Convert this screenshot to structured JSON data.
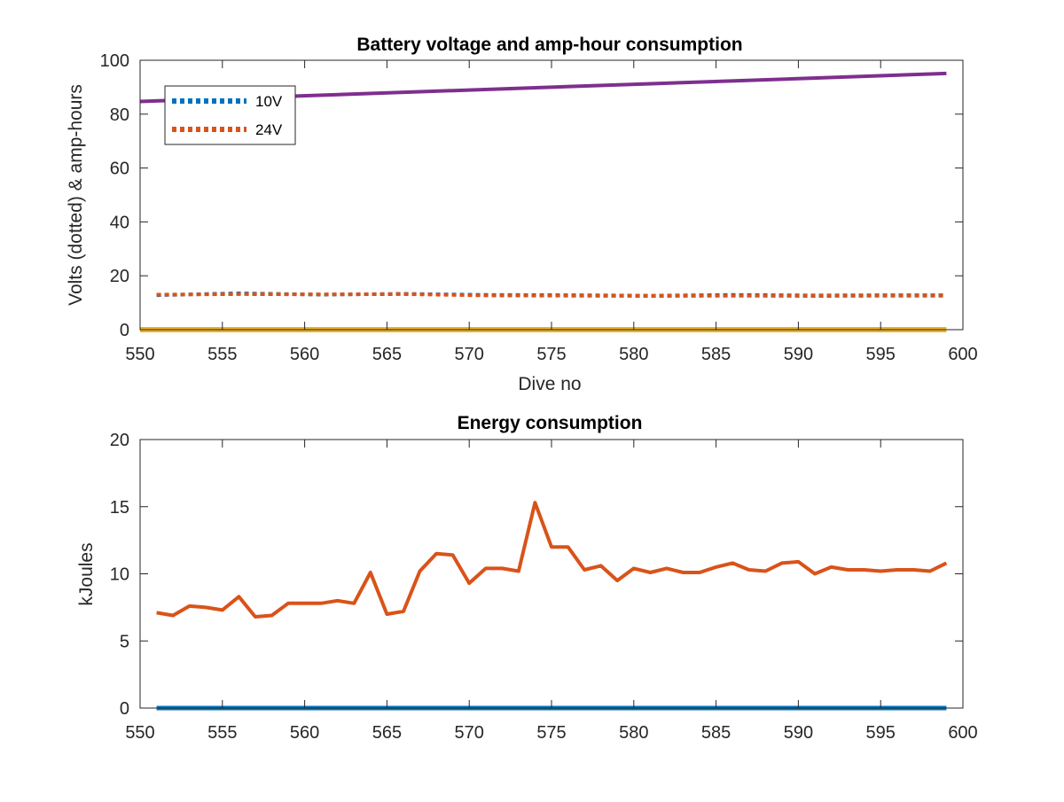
{
  "chart_data": [
    {
      "type": "line",
      "title": "Battery voltage and amp-hour consumption",
      "xlabel": "Dive no",
      "ylabel": "Volts (dotted) & amp-hours",
      "xlim": [
        550,
        600
      ],
      "ylim": [
        0,
        100
      ],
      "xticks": [
        550,
        555,
        560,
        565,
        570,
        575,
        580,
        585,
        590,
        595,
        600
      ],
      "yticks": [
        0,
        20,
        40,
        60,
        80,
        100
      ],
      "legend_placement": "top-left",
      "grid": false,
      "series": [
        {
          "name": "10V",
          "style": "dotted",
          "color": "#0072BD",
          "x": [
            551,
            556,
            561,
            566,
            571,
            576,
            581,
            586,
            591,
            596,
            599
          ],
          "y": [
            12.8,
            13.5,
            13.0,
            13.3,
            12.9,
            12.8,
            12.6,
            12.9,
            12.7,
            12.8,
            12.8
          ]
        },
        {
          "name": "24V",
          "style": "dotted",
          "color": "#D95319",
          "x": [
            551,
            556,
            561,
            566,
            571,
            576,
            581,
            586,
            591,
            596,
            599
          ],
          "y": [
            13.0,
            13.2,
            13.1,
            13.2,
            12.7,
            12.6,
            12.5,
            12.6,
            12.5,
            12.6,
            12.6
          ]
        },
        {
          "style": "solid",
          "color": "#EDB120",
          "x": [
            550,
            599
          ],
          "y": [
            0,
            0
          ]
        },
        {
          "style": "solid",
          "color": "#7E2F8E",
          "x": [
            550,
            599
          ],
          "y": [
            84.7,
            95.1
          ]
        }
      ]
    },
    {
      "type": "line",
      "title": "Energy consumption",
      "xlabel": "",
      "ylabel": "kJoules",
      "xlim": [
        550,
        600
      ],
      "ylim": [
        0,
        20
      ],
      "xticks": [
        550,
        555,
        560,
        565,
        570,
        575,
        580,
        585,
        590,
        595,
        600
      ],
      "yticks": [
        0,
        5,
        10,
        15,
        20
      ],
      "grid": false,
      "series": [
        {
          "style": "solid",
          "color": "#0072BD",
          "x": [
            551,
            599
          ],
          "y": [
            0,
            0
          ]
        },
        {
          "style": "solid",
          "color": "#D95319",
          "x": [
            551,
            552,
            553,
            554,
            555,
            556,
            557,
            558,
            559,
            560,
            561,
            562,
            563,
            564,
            565,
            566,
            567,
            568,
            569,
            570,
            571,
            572,
            573,
            574,
            575,
            576,
            577,
            578,
            579,
            580,
            581,
            582,
            583,
            584,
            585,
            586,
            587,
            588,
            589,
            590,
            591,
            592,
            593,
            594,
            595,
            596,
            597,
            598,
            599
          ],
          "y": [
            7.1,
            6.9,
            7.6,
            7.5,
            7.3,
            8.3,
            6.8,
            6.9,
            7.8,
            7.8,
            7.8,
            8.0,
            7.8,
            10.1,
            7.0,
            7.2,
            10.2,
            11.5,
            11.4,
            9.3,
            10.4,
            10.4,
            10.2,
            15.3,
            12.0,
            12.0,
            10.3,
            10.6,
            9.5,
            10.4,
            10.1,
            10.4,
            10.1,
            10.1,
            10.5,
            10.8,
            10.3,
            10.2,
            10.8,
            10.9,
            10.0,
            10.5,
            10.3,
            10.3,
            10.2,
            10.3,
            10.3,
            10.2,
            10.8
          ]
        }
      ]
    }
  ]
}
